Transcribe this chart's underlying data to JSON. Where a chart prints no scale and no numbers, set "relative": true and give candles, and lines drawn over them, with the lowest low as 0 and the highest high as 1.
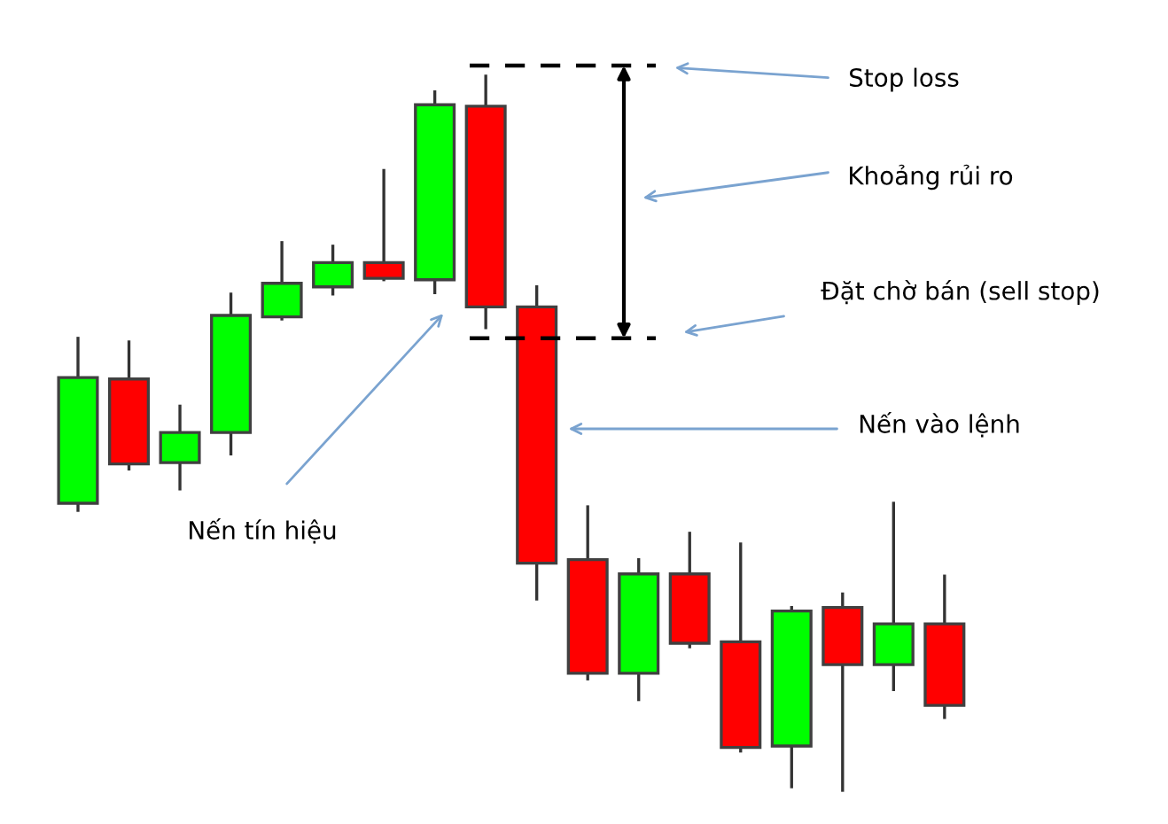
{
  "chart_data": {
    "type": "candlestick",
    "relative": true,
    "categories": [
      null,
      null,
      null,
      null,
      null,
      null,
      null,
      null,
      null,
      null,
      null,
      null,
      null,
      null,
      null,
      null,
      null,
      null
    ],
    "ohlc": [
      [
        0.402,
        0.633,
        0.392,
        0.578
      ],
      [
        0.576,
        0.628,
        0.45,
        0.457
      ],
      [
        0.459,
        0.538,
        0.422,
        0.501
      ],
      [
        0.501,
        0.695,
        0.471,
        0.665
      ],
      [
        0.663,
        0.767,
        0.66,
        0.71
      ],
      [
        0.705,
        0.762,
        0.695,
        0.739
      ],
      [
        0.739,
        0.868,
        0.715,
        0.717
      ],
      [
        0.715,
        0.978,
        0.697,
        0.96
      ],
      [
        0.958,
        1,
        0.648,
        0.677
      ],
      [
        0.677,
        0.705,
        0.268,
        0.318
      ],
      [
        0.323,
        0.397,
        0.156,
        0.164
      ],
      [
        0.164,
        0.323,
        0.127,
        0.303
      ],
      [
        0.303,
        0.36,
        0.201,
        0.206
      ],
      [
        0.208,
        0.345,
        0.055,
        0.06
      ],
      [
        0.062,
        0.256,
        0.005,
        0.251
      ],
      [
        0.256,
        0.275,
        0,
        0.176
      ],
      [
        0.176,
        0.402,
        0.141,
        0.233
      ],
      [
        0.233,
        0.3,
        0.102,
        0.119
      ]
    ],
    "colors": [
      "#00ff00",
      "#ff0000",
      "#00ff00",
      "#00ff00",
      "#00ff00",
      "#00ff00",
      "#ff0000",
      "#00ff00",
      "#ff0000",
      "#ff0000",
      "#ff0000",
      "#00ff00",
      "#ff0000",
      "#ff0000",
      "#00ff00",
      "#ff0000",
      "#00ff00",
      "#ff0000"
    ],
    "ref_lines": [
      {
        "axis": "y",
        "value": 1.015,
        "color": "#000000",
        "line_style": "dashed"
      },
      {
        "axis": "y",
        "value": 0.633,
        "color": "#000000",
        "line_style": "dashed"
      }
    ],
    "annotations": [
      "Stop loss",
      "Khoảng rủi ro",
      "Đặt chờ bán (sell stop)",
      "Nến vào lệnh",
      "Nến tín hiệu"
    ]
  }
}
